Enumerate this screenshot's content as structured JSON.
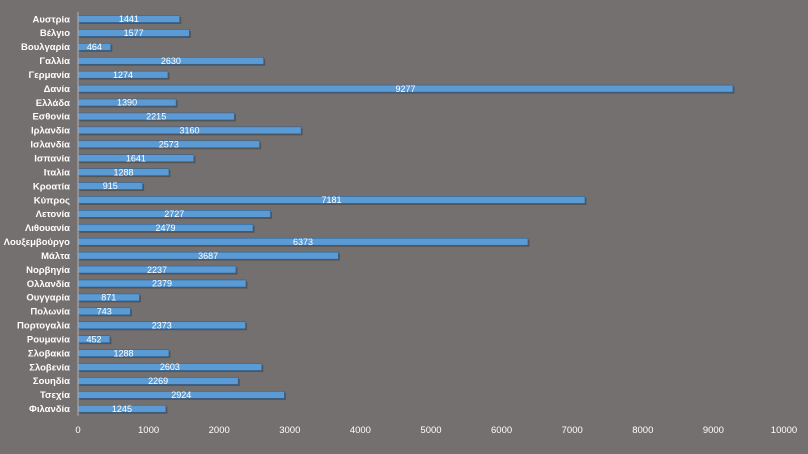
{
  "chart_data": {
    "type": "bar",
    "orientation": "horizontal",
    "title": "",
    "xlabel": "",
    "ylabel": "",
    "xlim": [
      0,
      10000
    ],
    "xticks": [
      0,
      1000,
      2000,
      3000,
      4000,
      5000,
      6000,
      7000,
      8000,
      9000,
      10000
    ],
    "grid": false,
    "legend": "none",
    "colors": {
      "background": "#757070",
      "bar": "#5b9bd5",
      "bar_border": "#2f5f8f",
      "text": "#ffffff"
    },
    "categories": [
      "Αυστρία",
      "Βέλγιο",
      "Βουλγαρία",
      "Γαλλία",
      "Γερμανία",
      "Δανία",
      "Ελλάδα",
      "Εσθονία",
      "Ιρλανδία",
      "Ισλανδία",
      "Ισπανία",
      "Ιταλία",
      "Κροατία",
      "Κύπρος",
      "Λετονία",
      "Λιθουανία",
      "Λουξεμβούργο",
      "Μάλτα",
      "Νορβηγία",
      "Ολλανδία",
      "Ουγγαρία",
      "Πολωνία",
      "Πορτογαλία",
      "Ρουμανία",
      "Σλοβακία",
      "Σλοβενία",
      "Σουηδία",
      "Τσεχία",
      "Φιλανδία"
    ],
    "values": [
      1441,
      1577,
      464,
      2630,
      1274,
      9277,
      1390,
      2215,
      3160,
      2573,
      1641,
      1288,
      915,
      7181,
      2727,
      2479,
      6373,
      3687,
      2237,
      2379,
      871,
      743,
      2373,
      452,
      1288,
      2603,
      2269,
      2924,
      1245
    ]
  }
}
